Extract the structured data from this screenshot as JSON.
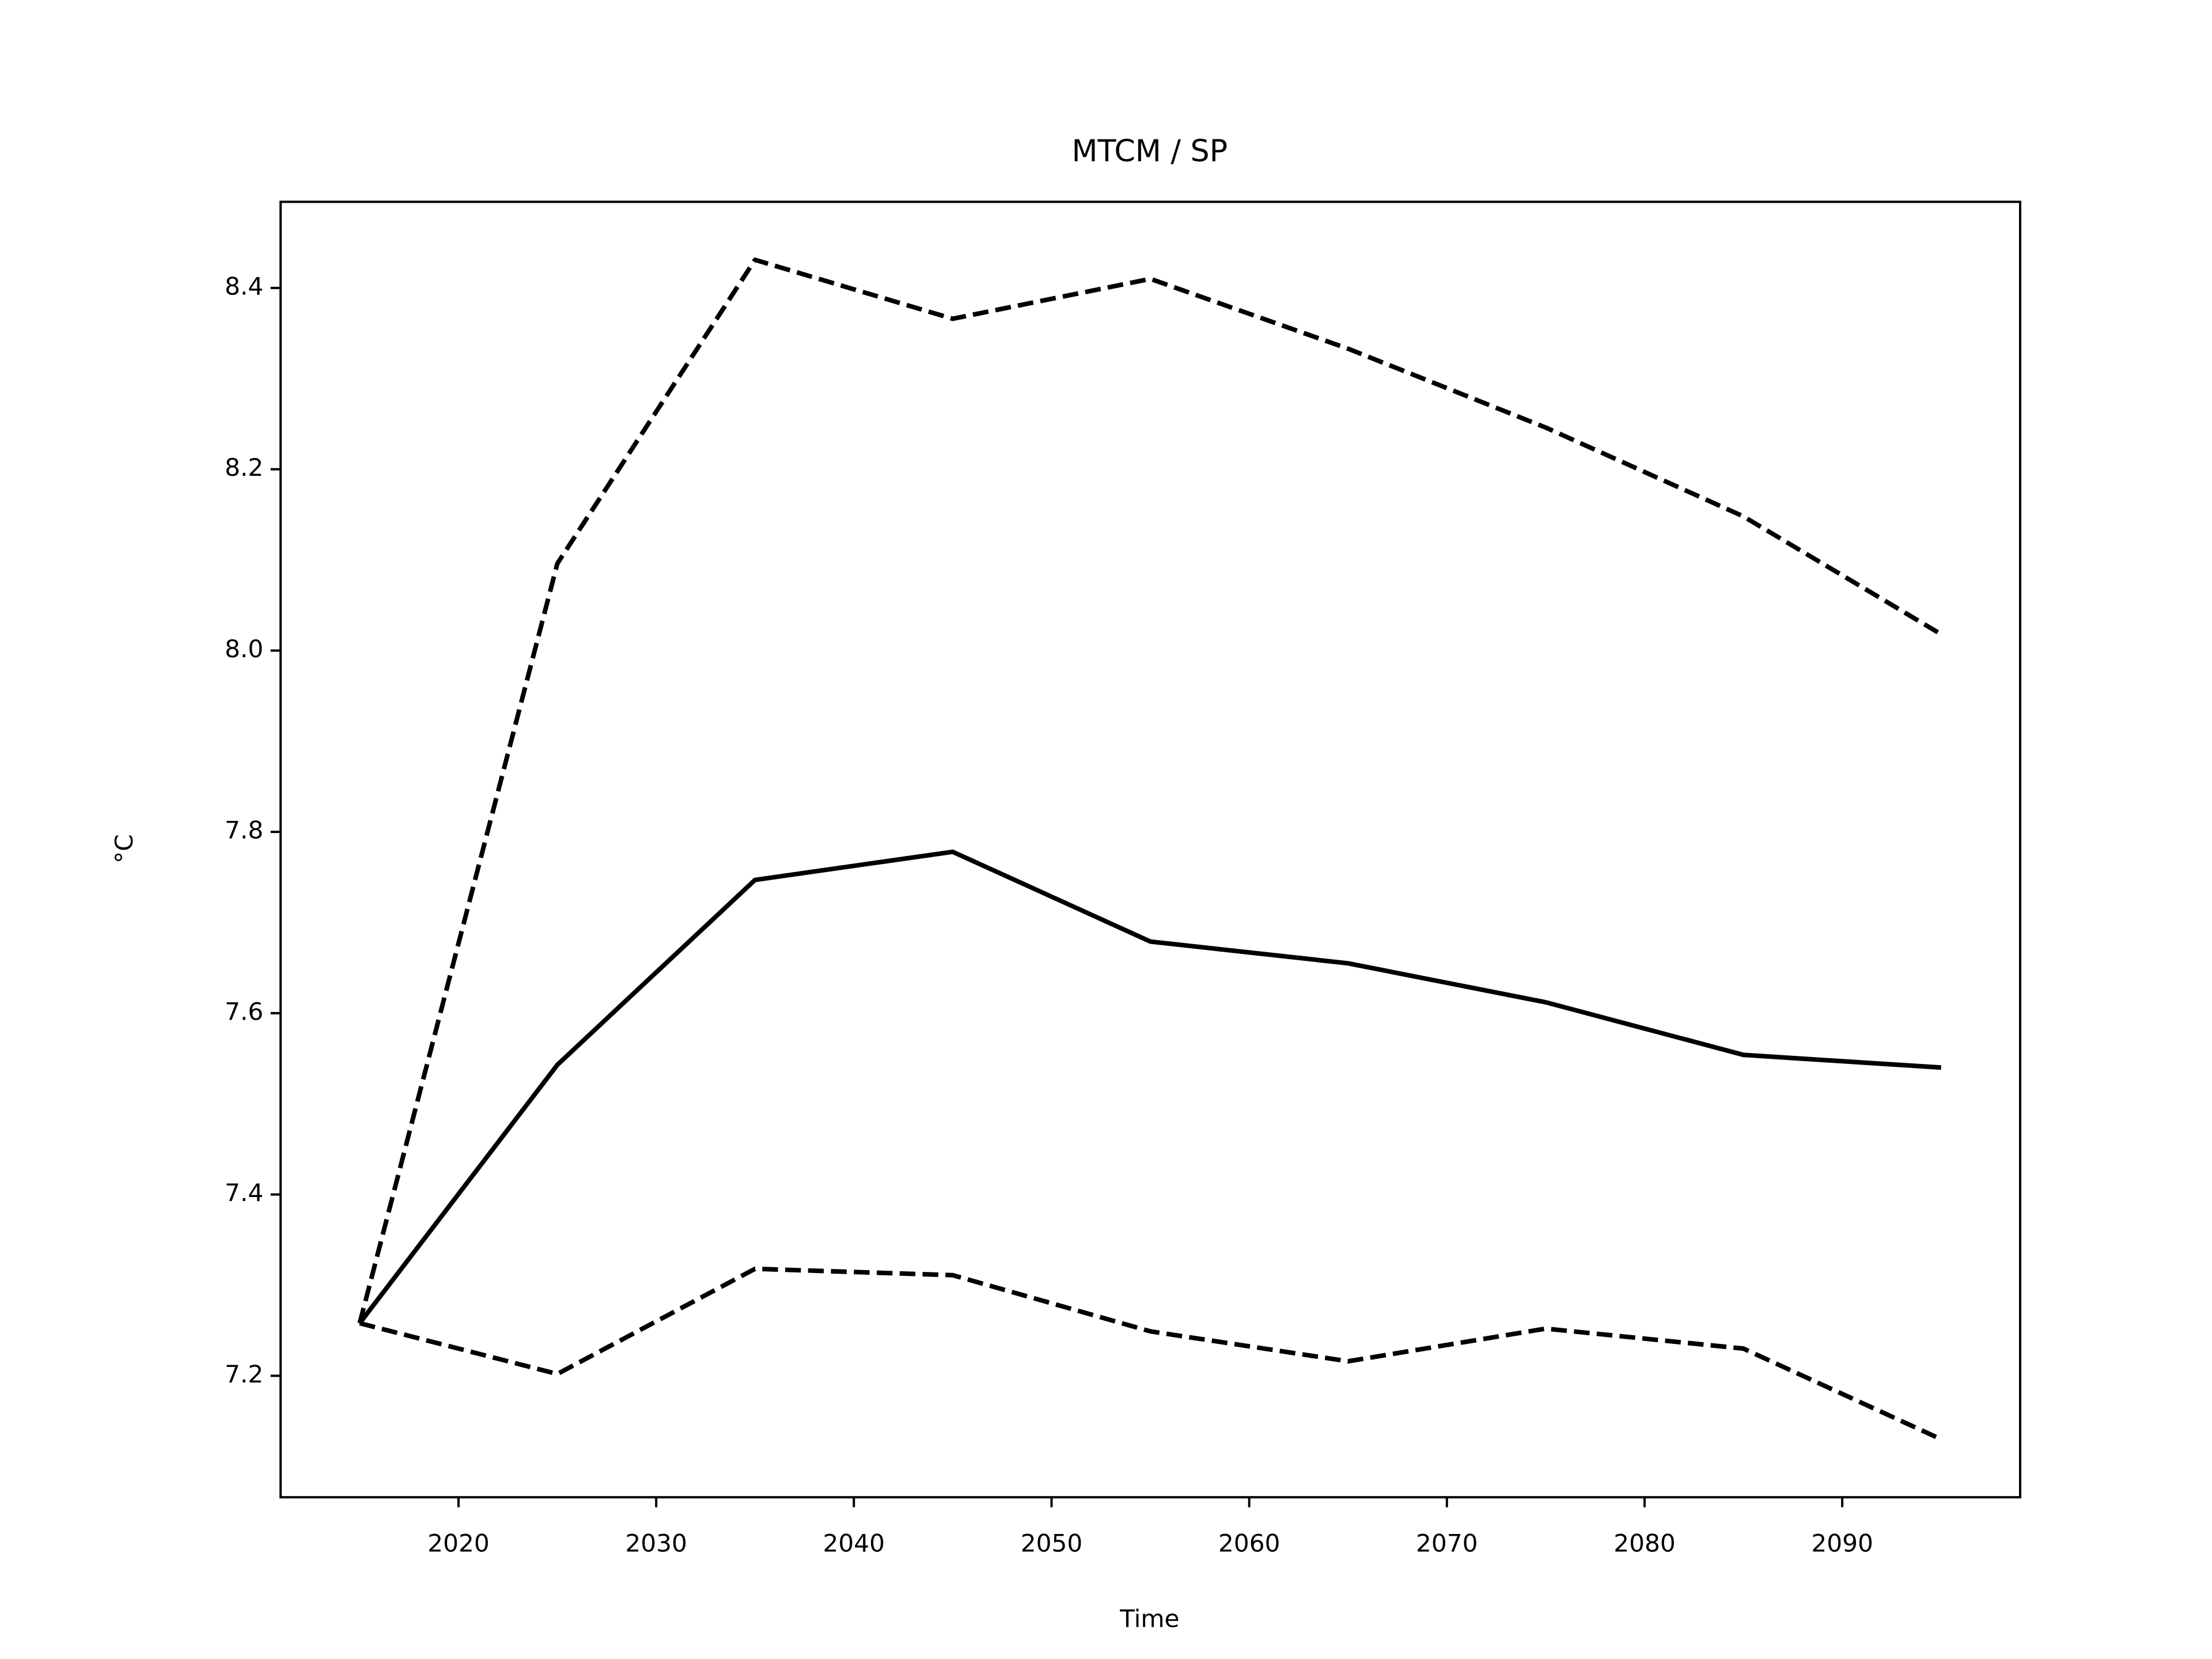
{
  "chart_data": {
    "type": "line",
    "title": "MTCM / SP",
    "xlabel": "Time",
    "ylabel": "°C",
    "x": [
      2015,
      2025,
      2035,
      2045,
      2055,
      2065,
      2075,
      2085,
      2095
    ],
    "series": [
      {
        "color": "#000000",
        "linestyle": "solid",
        "values": [
          7.258,
          7.543,
          7.747,
          7.778,
          7.679,
          7.655,
          7.612,
          7.554,
          7.54
        ]
      },
      {
        "color": "#000000",
        "linestyle": "dashed",
        "values": [
          7.258,
          8.096,
          8.431,
          8.366,
          8.41,
          8.333,
          8.246,
          8.148,
          8.018
        ]
      },
      {
        "color": "#000000",
        "linestyle": "dashed",
        "values": [
          7.258,
          7.202,
          7.318,
          7.311,
          7.249,
          7.216,
          7.252,
          7.23,
          7.13
        ]
      }
    ],
    "xlim": [
      2011,
      2099
    ],
    "xticks": [
      2020,
      2030,
      2040,
      2050,
      2060,
      2070,
      2080,
      2090
    ],
    "ylim": [
      7.066,
      8.495
    ],
    "yticks": [
      7.2,
      7.4,
      7.6,
      7.8,
      {
        "value": 8,
        "label": "8.0"
      },
      8.2,
      8.4
    ],
    "grid": false
  }
}
